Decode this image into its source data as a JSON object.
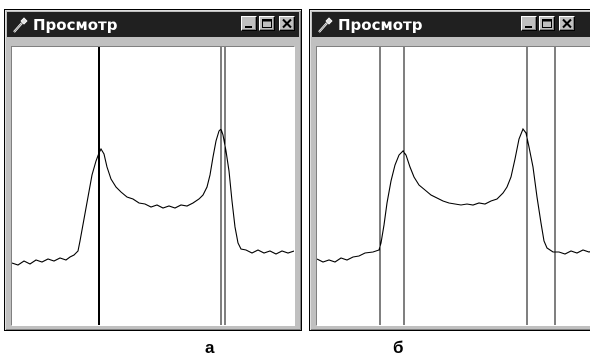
{
  "windows": [
    {
      "id": "a",
      "title": "Просмотр",
      "controls": [
        "minimize",
        "maximize",
        "close"
      ],
      "caption": "а"
    },
    {
      "id": "b",
      "title": "Просмотр",
      "controls": [
        "minimize",
        "maximize",
        "close"
      ],
      "caption": "б"
    }
  ],
  "icons": {
    "title": "tool-icon",
    "minimize": "minimize-icon",
    "maximize": "maximize-icon",
    "close": "close-icon"
  },
  "colors": {
    "titlebar": "#202020",
    "window_face": "#c0c0c0",
    "plot_bg": "#ffffff",
    "trace": "#000000"
  }
}
